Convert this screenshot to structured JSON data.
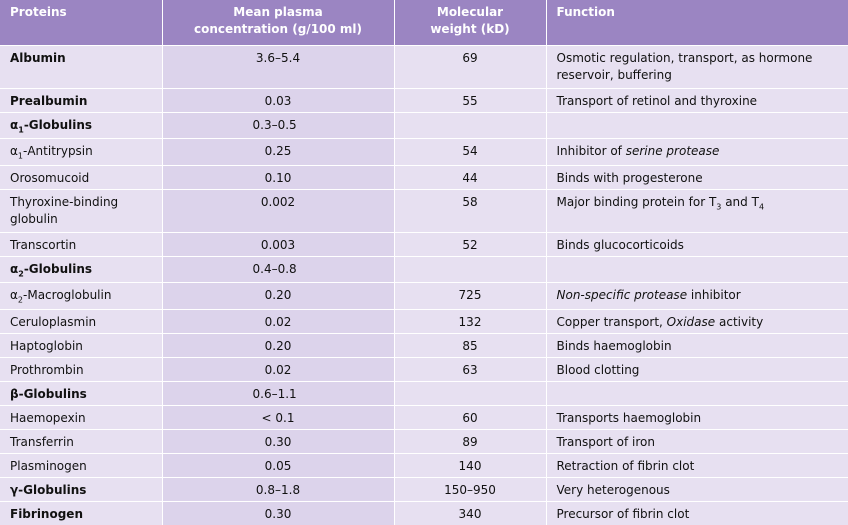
{
  "headers": {
    "proteins": "Proteins",
    "conc_line1": "Mean plasma",
    "conc_line2": "concentration (g/100 ml)",
    "mw_line1": "Molecular",
    "mw_line2": "weight (kD)",
    "function": "Function"
  },
  "rows": [
    {
      "name": "Albumin",
      "bold": true,
      "conc": "3.6–5.4",
      "mw": "69",
      "func": "Osmotic regulation, transport, as hormone reservoir, buffering"
    },
    {
      "name": "Prealbumin",
      "bold": true,
      "conc": "0.03",
      "mw": "55",
      "func": "Transport of retinol and thyroxine"
    },
    {
      "name_prefix": "α",
      "name_sub": "1",
      "name_suffix": "-Globulins",
      "bold": true,
      "conc": "0.3–0.5",
      "mw": "",
      "func": ""
    },
    {
      "name_prefix": "α",
      "name_sub": "1",
      "name_suffix": "-Antitrypsin",
      "conc": "0.25",
      "mw": "54",
      "func_pre": "Inhibitor of ",
      "func_it": "serine protease"
    },
    {
      "name": "Orosomucoid",
      "conc": "0.10",
      "mw": "44",
      "func": "Binds with progesterone"
    },
    {
      "name": "Thyroxine-binding globulin",
      "conc": "0.002",
      "mw": "58",
      "func_pre": "Major binding protein for T",
      "func_sub1": "3",
      "func_mid": " and T",
      "func_sub2": "4"
    },
    {
      "name": "Transcortin",
      "conc": "0.003",
      "mw": "52",
      "func": "Binds glucocorticoids"
    },
    {
      "name_prefix": "α",
      "name_sub": "2",
      "name_suffix": "-Globulins",
      "bold": true,
      "conc": "0.4–0.8",
      "mw": "",
      "func": ""
    },
    {
      "name_prefix": "α",
      "name_sub": "2",
      "name_suffix": "-Macroglobulin",
      "conc": "0.20",
      "mw": "725",
      "func_it": "Non-specific protease",
      "func_post": " inhibitor"
    },
    {
      "name": "Ceruloplasmin",
      "conc": "0.02",
      "mw": "132",
      "func_pre": "Copper transport, ",
      "func_it": "Oxidase",
      "func_post": " activity"
    },
    {
      "name": "Haptoglobin",
      "conc": "0.20",
      "mw": "85",
      "func": "Binds haemoglobin"
    },
    {
      "name": "Prothrombin",
      "conc": "0.02",
      "mw": "63",
      "func": "Blood clotting"
    },
    {
      "name": "β-Globulins",
      "bold": true,
      "conc": "0.6–1.1",
      "mw": "",
      "func": ""
    },
    {
      "name": "Haemopexin",
      "conc": "< 0.1",
      "mw": "60",
      "func": "Transports haemoglobin"
    },
    {
      "name": "Transferrin",
      "conc": "0.30",
      "mw": "89",
      "func": "Transport of iron"
    },
    {
      "name": "Plasminogen",
      "conc": "0.05",
      "mw": "140",
      "func": "Retraction of fibrin clot"
    },
    {
      "name": "γ-Globulins",
      "bold": true,
      "conc": "0.8–1.8",
      "mw": "150–950",
      "func": "Very heterogenous"
    },
    {
      "name": "Fibrinogen",
      "bold": true,
      "conc": "0.30",
      "mw": "340",
      "func": "Precursor of fibrin clot"
    }
  ]
}
